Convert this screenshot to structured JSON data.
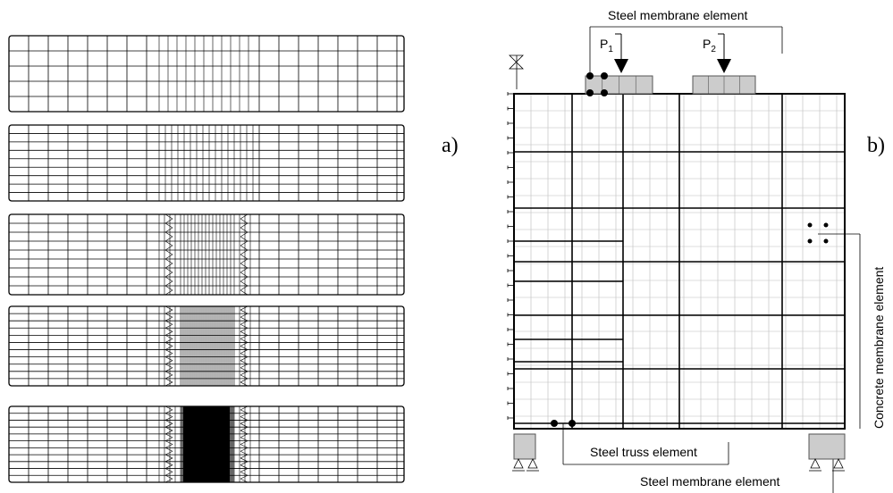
{
  "panels": [
    {
      "label": "a)"
    },
    {
      "label": "b)"
    }
  ],
  "annotations": {
    "top_membrane": "Steel membrane element",
    "concrete_membrane": "Concrete membrane element",
    "truss": "Steel truss element",
    "bottom_membrane": "Steel membrane element"
  },
  "loads": [
    {
      "symbol": "P",
      "index": "1"
    },
    {
      "symbol": "P",
      "index": "2"
    }
  ]
}
